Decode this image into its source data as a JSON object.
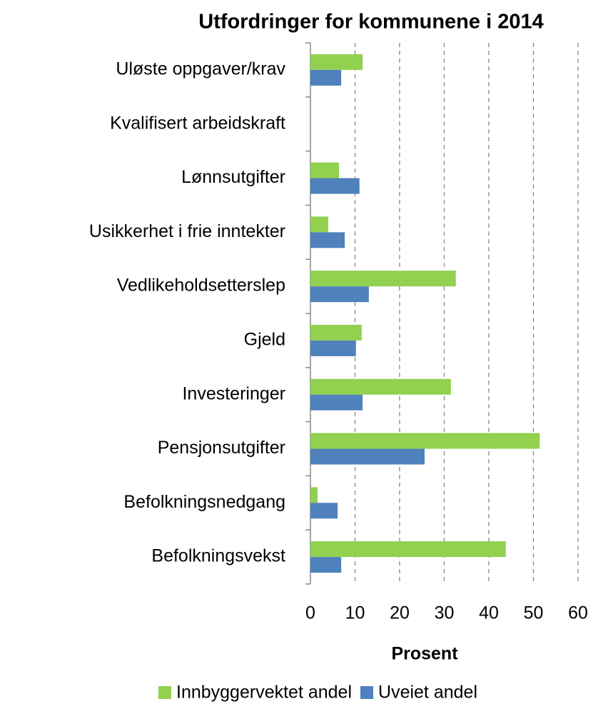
{
  "chart_data": {
    "type": "bar",
    "orientation": "horizontal",
    "title": "Utfordringer for kommunene i 2014",
    "x_label": "Prosent",
    "categories": [
      "Uløste oppgaver/krav",
      "Kvalifisert arbeidskraft",
      "Lønnsutgifter",
      "Usikkerhet i frie inntekter",
      "Vedlikeholdsetterslep",
      "Gjeld",
      "Investeringer",
      "Pensjonsutgifter",
      "Befolkningsnedgang",
      "Befolkningsvekst"
    ],
    "series": [
      {
        "name": "Innbyggervektet andel",
        "color": "#92d050",
        "values": [
          11.7,
          0,
          6.4,
          4.0,
          32.6,
          11.5,
          31.5,
          51.4,
          1.6,
          43.8
        ]
      },
      {
        "name": "Uveiet andel",
        "color": "#4f81bd",
        "values": [
          6.9,
          0,
          11.0,
          7.7,
          13.1,
          10.2,
          11.7,
          25.6,
          6.1,
          6.9
        ]
      }
    ],
    "xlim": [
      0,
      60
    ],
    "xticks": [
      0,
      10,
      20,
      30,
      40,
      50,
      60
    ],
    "grid": true,
    "legend": "bottom"
  }
}
